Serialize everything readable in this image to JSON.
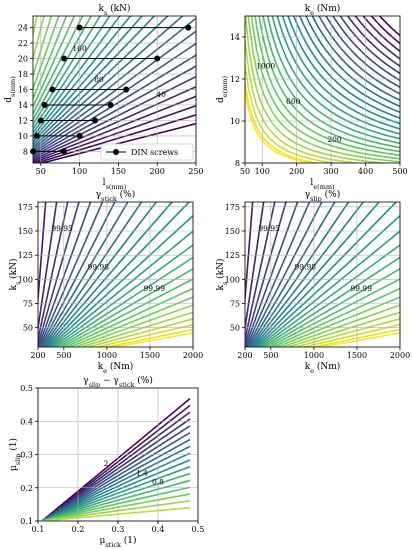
{
  "figure": {
    "panels": [
      "ks",
      "ke",
      "gstick",
      "gslip",
      "gdiff"
    ]
  },
  "chart_data": [
    {
      "id": "ks",
      "type": "line",
      "title": "k_s (kN)",
      "xlabel": "l_s(mm)",
      "ylabel": "d_s(mm)",
      "xlim": [
        40,
        250
      ],
      "ylim": [
        6.5,
        25.5
      ],
      "xticks": [
        50,
        100,
        150,
        200,
        250
      ],
      "yticks": [
        8,
        10,
        12,
        14,
        16,
        18,
        20,
        22,
        24
      ],
      "grid": true,
      "legend": {
        "label": "DIN screws",
        "position": "lower-right"
      },
      "contour_labels": [
        {
          "text": "40",
          "x": 205,
          "y": 15.0
        },
        {
          "text": "80",
          "x": 125,
          "y": 17.0
        },
        {
          "text": "160",
          "x": 100,
          "y": 21.0
        }
      ],
      "series": [
        {
          "name": "DIN screws",
          "segments": [
            {
              "d": 8,
              "l_min": 40,
              "l_max": 80
            },
            {
              "d": 10,
              "l_min": 45,
              "l_max": 100
            },
            {
              "d": 12,
              "l_min": 50,
              "l_max": 120
            },
            {
              "d": 14,
              "l_min": 55,
              "l_max": 140
            },
            {
              "d": 16,
              "l_min": 65,
              "l_max": 160
            },
            {
              "d": 20,
              "l_min": 80,
              "l_max": 200
            },
            {
              "d": 24,
              "l_min": 100,
              "l_max": 240
            }
          ]
        }
      ]
    },
    {
      "id": "ke",
      "type": "line",
      "title": "k_e (Nm)",
      "xlabel": "l_e(mm)",
      "ylabel": "d_e(mm)",
      "xlim": [
        50,
        500
      ],
      "ylim": [
        8,
        15
      ],
      "xticks": [
        50,
        100,
        200,
        300,
        400,
        500
      ],
      "yticks": [
        8,
        10,
        12,
        14
      ],
      "grid": true,
      "contour_labels": [
        {
          "text": "200",
          "x": 310,
          "y": 9.0
        },
        {
          "text": "600",
          "x": 190,
          "y": 10.8
        },
        {
          "text": "1000",
          "x": 110,
          "y": 12.5
        }
      ]
    },
    {
      "id": "gstick",
      "type": "line",
      "title": "γ_stick (%)",
      "xlabel": "k_e (Nm)",
      "ylabel": "k_s (kN)",
      "xlim": [
        200,
        2000
      ],
      "ylim": [
        30,
        180
      ],
      "xticks": [
        200,
        500,
        1000,
        1500,
        2000
      ],
      "yticks": [
        50,
        75,
        100,
        125,
        150,
        175
      ],
      "grid": true,
      "contour_labels": [
        {
          "text": "99.95",
          "x": 480,
          "y": 150
        },
        {
          "text": "99.98",
          "x": 900,
          "y": 110
        },
        {
          "text": "99.99",
          "x": 1550,
          "y": 88
        }
      ]
    },
    {
      "id": "gslip",
      "type": "line",
      "title": "γ_slip (%)",
      "xlabel": "k_e (Nm)",
      "ylabel": "k_s (kN)",
      "xlim": [
        200,
        2000
      ],
      "ylim": [
        30,
        180
      ],
      "xticks": [
        200,
        500,
        1000,
        1500,
        2000
      ],
      "yticks": [
        50,
        75,
        100,
        125,
        150,
        175
      ],
      "grid": true,
      "contour_labels": [
        {
          "text": "99.95",
          "x": 480,
          "y": 150
        },
        {
          "text": "99.98",
          "x": 900,
          "y": 110
        },
        {
          "text": "99.99",
          "x": 1550,
          "y": 88
        }
      ]
    },
    {
      "id": "gdiff",
      "type": "line",
      "title": "γ_slip − γ_stick (%)",
      "xlabel": "μ_stick (1)",
      "ylabel": "μ_slip (1)",
      "xlim": [
        0.1,
        0.5
      ],
      "ylim": [
        0.1,
        0.5
      ],
      "xticks": [
        0.1,
        0.2,
        0.3,
        0.4,
        0.5
      ],
      "yticks": [
        0.1,
        0.2,
        0.3,
        0.4,
        0.5
      ],
      "grid": true,
      "contour_labels": [
        {
          "text": "2",
          "x": 0.27,
          "y": 0.265
        },
        {
          "text": "1.4",
          "x": 0.36,
          "y": 0.237
        },
        {
          "text": "0.8",
          "x": 0.4,
          "y": 0.21
        }
      ]
    }
  ]
}
